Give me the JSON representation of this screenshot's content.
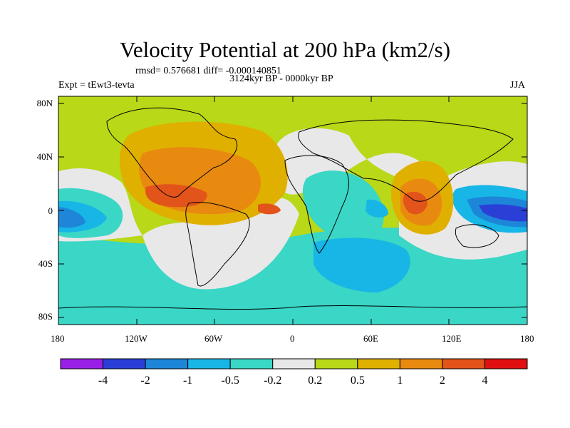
{
  "title": "Velocity Potential at 200 hPa (km2/s)",
  "stats": "rmsd= 0.576681 diff= -0.000140851",
  "experiment": "Expt = tEwt3-tevta",
  "period": "3124kyr BP - 0000kyr BP",
  "season": "JJA",
  "map": {
    "lat_labels": [
      "80N",
      "40N",
      "0",
      "40S",
      "80S"
    ],
    "lon_labels": [
      "180",
      "120W",
      "60W",
      "0",
      "60E",
      "120E",
      "180"
    ]
  },
  "colorbar": {
    "colors": [
      "#9a1fe6",
      "#2a3fd6",
      "#1d86d8",
      "#17b6e6",
      "#3ad6c6",
      "#e8e8e8",
      "#b8d818",
      "#e0b000",
      "#e88a10",
      "#e2541a",
      "#e01010"
    ],
    "labels": [
      "-4",
      "-2",
      "-1",
      "-0.5",
      "-0.2",
      "0.2",
      "0.5",
      "1",
      "2",
      "4"
    ]
  }
}
